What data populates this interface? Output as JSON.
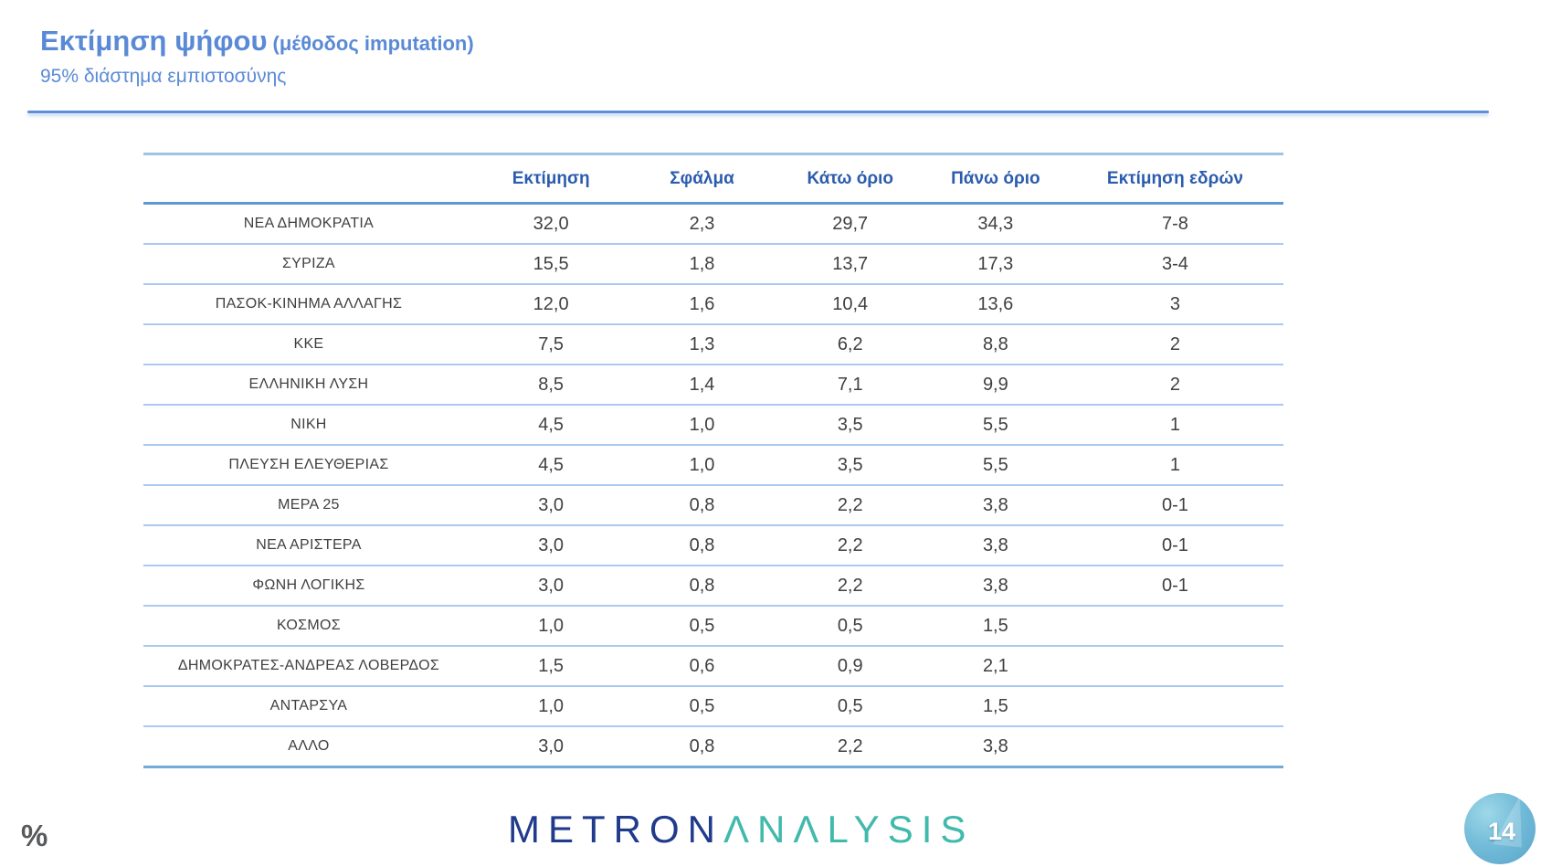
{
  "slide": {
    "title": "Εκτίμηση ψήφου",
    "title_suffix": "(μέθοδος imputation)",
    "subtitle": "95% διάστημα εμπιστοσύνης",
    "unit_note": "%",
    "page_number": "14",
    "logo_part1": "METRON",
    "logo_part2": "ΛΝΛLYSIS"
  },
  "colors": {
    "title_blue": "#5a8ad6",
    "header_blue": "#2b5cad",
    "body_text": "#404040",
    "row_divider": "#abc9ef",
    "header_rule": "#5b9bd5",
    "table_top_rule": "#9dc3e6",
    "table_bottom_rule": "#74a9d8",
    "logo_navy": "#203a8c",
    "logo_teal": "#41b9ab",
    "badge_blue": "#58a5cb",
    "percent_gray": "#58595b"
  },
  "chart_data": {
    "type": "table",
    "title": "Εκτίμηση ψήφου (μέθοδος imputation) — 95% διάστημα εμπιστοσύνης",
    "columns": [
      "",
      "Εκτίμηση",
      "Σφάλμα",
      "Κάτω όριο",
      "Πάνω όριο",
      "Εκτίμηση εδρών"
    ],
    "rows": [
      [
        "ΝΕΑ  ΔΗΜΟΚΡΑΤΙΑ",
        "32,0",
        "2,3",
        "29,7",
        "34,3",
        "7-8"
      ],
      [
        "ΣΥΡΙΖΑ",
        "15,5",
        "1,8",
        "13,7",
        "17,3",
        "3-4"
      ],
      [
        "ΠΑΣΟΚ-ΚΙΝΗΜΑ  ΑΛΛΑΓΗΣ",
        "12,0",
        "1,6",
        "10,4",
        "13,6",
        "3"
      ],
      [
        "ΚΚΕ",
        "7,5",
        "1,3",
        "6,2",
        "8,8",
        "2"
      ],
      [
        "ΕΛΛΗΝΙΚΗ ΛΥΣΗ",
        "8,5",
        "1,4",
        "7,1",
        "9,9",
        "2"
      ],
      [
        "ΝΙΚΗ",
        "4,5",
        "1,0",
        "3,5",
        "5,5",
        "1"
      ],
      [
        "ΠΛΕΥΣΗ ΕΛΕΥΘΕΡΙΑΣ",
        "4,5",
        "1,0",
        "3,5",
        "5,5",
        "1"
      ],
      [
        "ΜΕΡΑ 25",
        "3,0",
        "0,8",
        "2,2",
        "3,8",
        "0-1"
      ],
      [
        "ΝΕΑ ΑΡΙΣΤΕΡΑ",
        "3,0",
        "0,8",
        "2,2",
        "3,8",
        "0-1"
      ],
      [
        "ΦΩΝΗ ΛΟΓΙΚΗΣ",
        "3,0",
        "0,8",
        "2,2",
        "3,8",
        "0-1"
      ],
      [
        "ΚΟΣΜΟΣ",
        "1,0",
        "0,5",
        "0,5",
        "1,5",
        ""
      ],
      [
        "ΔΗΜΟΚΡΑΤΕΣ-ΑΝΔΡΕΑΣ ΛΟΒΕΡΔΟΣ",
        "1,5",
        "0,6",
        "0,9",
        "2,1",
        ""
      ],
      [
        "ΑΝΤΑΡΣΥΑ",
        "1,0",
        "0,5",
        "0,5",
        "1,5",
        ""
      ],
      [
        "ΑΛΛΟ",
        "3,0",
        "0,8",
        "2,2",
        "3,8",
        ""
      ]
    ]
  }
}
